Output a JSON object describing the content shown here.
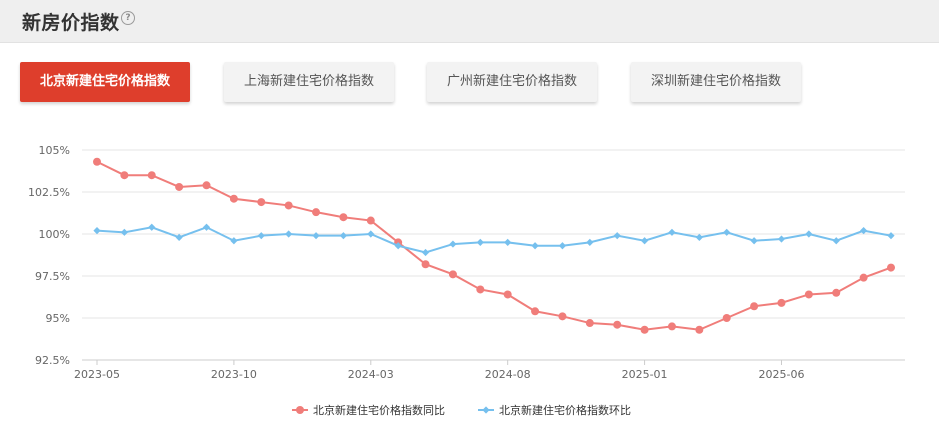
{
  "header": {
    "title": "新房价指数",
    "help_icon": "question-circle-icon",
    "help_glyph": "?"
  },
  "tabs": [
    {
      "label": "北京新建住宅价格指数",
      "active": true
    },
    {
      "label": "上海新建住宅价格指数",
      "active": false
    },
    {
      "label": "广州新建住宅价格指数",
      "active": false
    },
    {
      "label": "深圳新建住宅价格指数",
      "active": false
    }
  ],
  "colors": {
    "accent": "#de3e2c",
    "series_yoy": "#f07d7a",
    "series_mom": "#76c0ee"
  },
  "chart_data": {
    "type": "line",
    "x": [
      "2023-05",
      "2023-06",
      "2023-07",
      "2023-08",
      "2023-09",
      "2023-10",
      "2023-11",
      "2023-12",
      "2024-01",
      "2024-02",
      "2024-03",
      "2024-04",
      "2024-05",
      "2024-06",
      "2024-07",
      "2024-08",
      "2024-09",
      "2024-10",
      "2024-11",
      "2024-12",
      "2025-01",
      "2025-02",
      "2025-03",
      "2025-04",
      "2025-05",
      "2025-06",
      "2025-07",
      "2025-08",
      "2025-09",
      "2025-10"
    ],
    "x_tick_labels": [
      "2023-05",
      "2023-10",
      "2024-03",
      "2024-08",
      "2025-01",
      "2025-06"
    ],
    "y_tick_labels": [
      "92.5%",
      "95%",
      "97.5%",
      "100%",
      "102.5%",
      "105%"
    ],
    "ylim": [
      92.5,
      105
    ],
    "grid": "horizontal",
    "legend_position": "bottom",
    "series": [
      {
        "name": "北京新建住宅价格指数同比",
        "values": [
          104.3,
          103.5,
          103.5,
          102.8,
          102.9,
          102.1,
          101.9,
          101.7,
          101.3,
          101.0,
          100.8,
          99.5,
          98.2,
          97.6,
          96.7,
          96.4,
          95.4,
          95.1,
          94.7,
          94.6,
          94.3,
          94.5,
          94.3,
          95.0,
          95.7,
          95.9,
          96.4,
          96.5,
          97.4,
          98.0
        ]
      },
      {
        "name": "北京新建住宅价格指数环比",
        "values": [
          100.2,
          100.1,
          100.4,
          99.8,
          100.4,
          99.6,
          99.9,
          100.0,
          99.9,
          99.9,
          100.0,
          99.3,
          98.9,
          99.4,
          99.5,
          99.5,
          99.3,
          99.3,
          99.5,
          99.9,
          99.6,
          100.1,
          99.8,
          100.1,
          99.6,
          99.7,
          100.0,
          99.6,
          100.2,
          99.9
        ]
      }
    ]
  }
}
